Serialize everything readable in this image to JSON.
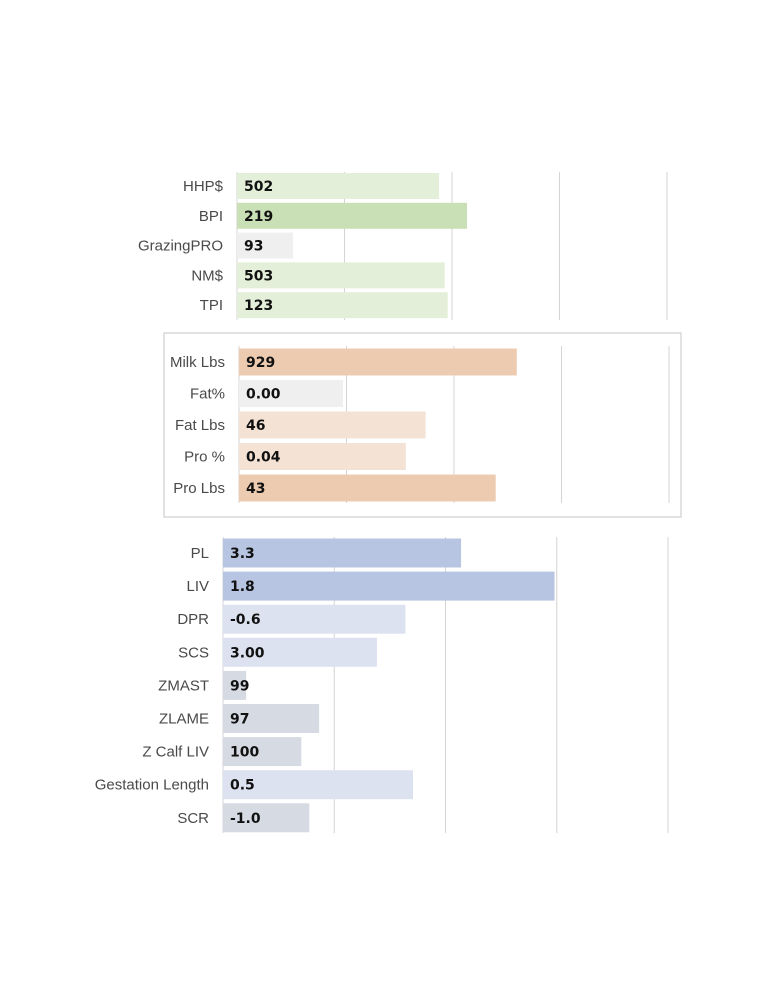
{
  "chart_data": [
    {
      "type": "bar",
      "orientation": "horizontal",
      "title": "",
      "grid": true,
      "categories": [
        "HHP$",
        "BPI",
        "GrazingPRO",
        "NM$",
        "TPI"
      ],
      "values": [
        502,
        219,
        93,
        503,
        123
      ],
      "value_labels": [
        "502",
        "219",
        "93",
        "503",
        "123"
      ],
      "bar_fraction": [
        0.47,
        0.535,
        0.13,
        0.483,
        0.49
      ],
      "colors": [
        "#e3efd9",
        "#c9dfb5",
        "#efefef",
        "#e3efd9",
        "#e3efd9"
      ]
    },
    {
      "type": "bar",
      "orientation": "horizontal",
      "title": "",
      "grid": true,
      "boxed": true,
      "categories": [
        "Milk Lbs",
        "Fat%",
        "Fat Lbs",
        "Pro %",
        "Pro Lbs"
      ],
      "values": [
        929,
        0.0,
        46,
        0.04,
        43
      ],
      "value_labels": [
        "929",
        "0.00",
        "46",
        "0.04",
        "43"
      ],
      "bar_fraction": [
        0.646,
        0.242,
        0.434,
        0.388,
        0.597
      ],
      "colors": [
        "#edcbb1",
        "#efefef",
        "#f4e2d5",
        "#f4e2d5",
        "#edcbb1"
      ]
    },
    {
      "type": "bar",
      "orientation": "horizontal",
      "title": "",
      "grid": true,
      "categories": [
        "PL",
        "LIV",
        "DPR",
        "SCS",
        "ZMAST",
        "ZLAME",
        "Z Calf LIV",
        "Gestation Length",
        "SCR"
      ],
      "values": [
        3.3,
        1.8,
        -0.6,
        3.0,
        99,
        97,
        100,
        0.5,
        -1.0
      ],
      "value_labels": [
        "3.3",
        "1.8",
        "-0.6",
        "3.00",
        "99",
        "97",
        "100",
        "0.5",
        "-1.0"
      ],
      "bar_fraction": [
        0.535,
        0.745,
        0.41,
        0.346,
        0.052,
        0.216,
        0.176,
        0.427,
        0.194
      ],
      "colors": [
        "#b8c5e2",
        "#b8c5e2",
        "#dde2f1",
        "#dde2f1",
        "#d6dbe3",
        "#d6dbe3",
        "#d6dbe3",
        "#dde2f1",
        "#d6dbe3"
      ]
    }
  ]
}
